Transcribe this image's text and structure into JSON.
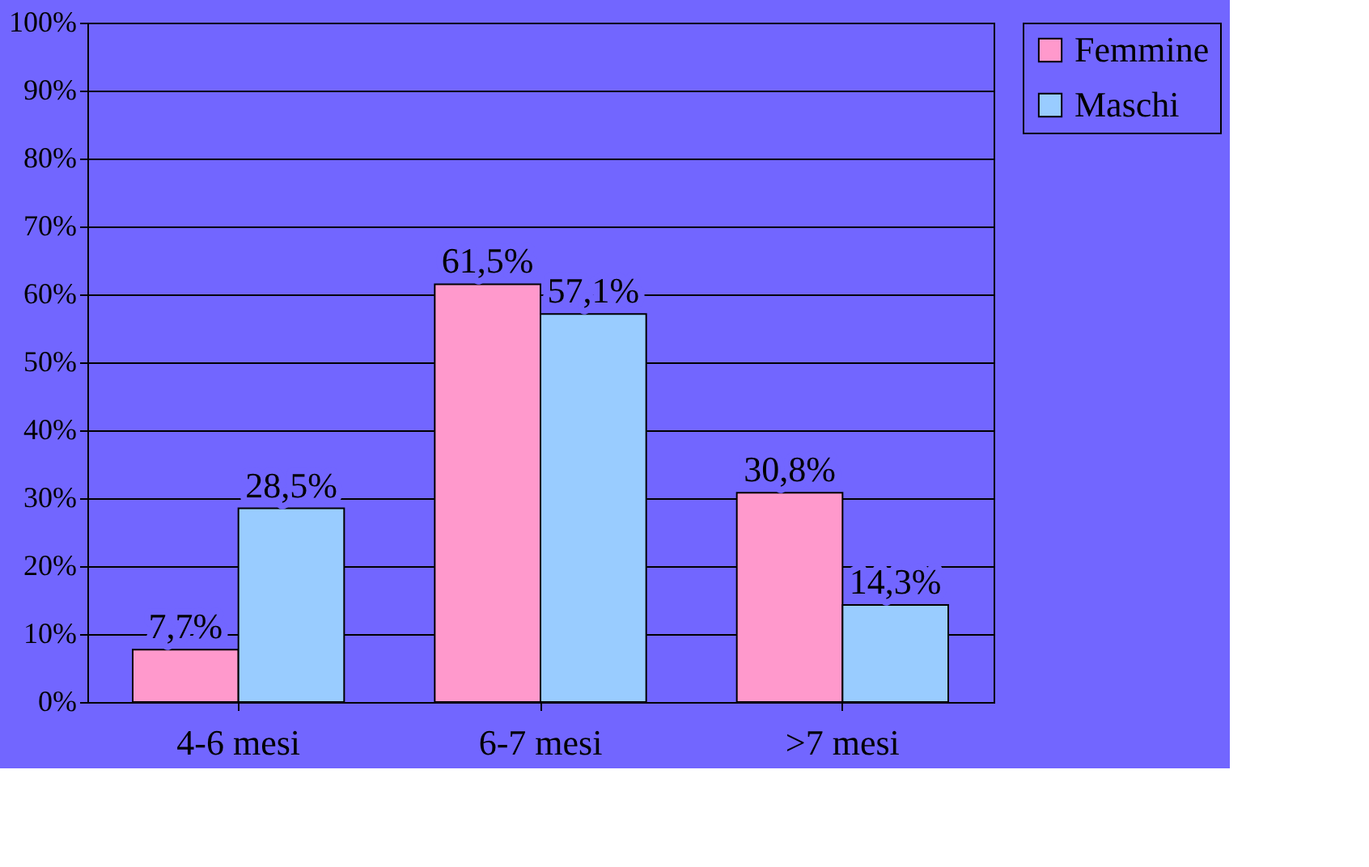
{
  "chart_data": {
    "type": "bar",
    "categories": [
      "4-6 mesi",
      "6-7 mesi",
      ">7 mesi"
    ],
    "series": [
      {
        "name": "Femmine",
        "color": "#ff99cc",
        "values": [
          7.7,
          61.5,
          30.8
        ],
        "value_labels": [
          "7,7%",
          "61,5%",
          "30,8%"
        ]
      },
      {
        "name": "Maschi",
        "color": "#99ccff",
        "values": [
          28.5,
          57.1,
          14.3
        ],
        "value_labels": [
          "28,5%",
          "57,1%",
          "14,3%"
        ]
      }
    ],
    "ylim": [
      0,
      100
    ],
    "yticks": [
      {
        "value": 0,
        "label": "0%"
      },
      {
        "value": 10,
        "label": "10%"
      },
      {
        "value": 20,
        "label": "20%"
      },
      {
        "value": 30,
        "label": "30%"
      },
      {
        "value": 40,
        "label": "40%"
      },
      {
        "value": 50,
        "label": "50%"
      },
      {
        "value": 60,
        "label": "60%"
      },
      {
        "value": 70,
        "label": "70%"
      },
      {
        "value": 80,
        "label": "80%"
      },
      {
        "value": 90,
        "label": "90%"
      },
      {
        "value": 100,
        "label": "100%"
      }
    ],
    "grid": "y",
    "legend": "top right"
  }
}
